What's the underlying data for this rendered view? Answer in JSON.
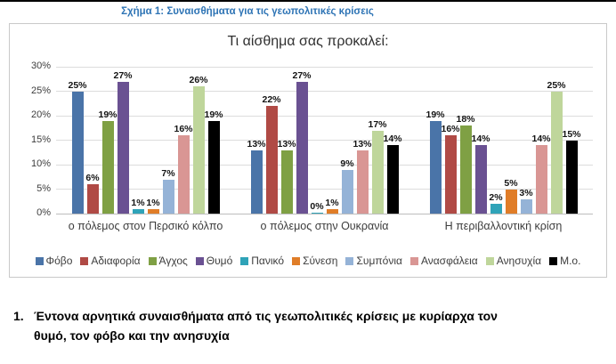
{
  "header": {
    "figure_title": "Σχήμα 1: Συναισθήματα για τις γεωπολιτικές κρίσεις"
  },
  "caption": {
    "number": "1.",
    "text": "Έντονα αρνητικά συναισθήματα από τις γεωπολιτικές κρίσεις με κυρίαρχα τον θυμό, τον φόβο και την ανησυχία"
  },
  "colors": {
    "figure_title_blue": "#2E74B5",
    "gridline": "#dcdcdc",
    "axis_line": "#bdbdbd",
    "box_border": "#c9c9c9"
  },
  "chart_data": {
    "type": "bar",
    "title": "Τι αίσθημα σας προκαλεί:",
    "categories": [
      "ο πόλεμος στον Περσικό κόλπο",
      "ο πόλεμος στην Ουκρανία",
      "Η περιβαλλοντική κρίση"
    ],
    "series": [
      {
        "name": "Φόβο",
        "color": "#4A74A8",
        "values": [
          25,
          13,
          19
        ]
      },
      {
        "name": "Αδιαφορία",
        "color": "#B04A45",
        "values": [
          6,
          22,
          16
        ]
      },
      {
        "name": "Άγχος",
        "color": "#7FA044",
        "values": [
          19,
          13,
          18
        ]
      },
      {
        "name": "Θυμό",
        "color": "#6A5192",
        "values": [
          27,
          27,
          14
        ]
      },
      {
        "name": "Πανικό",
        "color": "#2FA3B8",
        "values": [
          1,
          0,
          2
        ]
      },
      {
        "name": "Σύνεση",
        "color": "#E07D28",
        "values": [
          1,
          1,
          5
        ]
      },
      {
        "name": "Συμπόνια",
        "color": "#95B3D7",
        "values": [
          7,
          9,
          3
        ]
      },
      {
        "name": "Ανασφάλεια",
        "color": "#D99694",
        "values": [
          16,
          13,
          14
        ]
      },
      {
        "name": "Ανησυχία",
        "color": "#BFD69B",
        "values": [
          26,
          17,
          25
        ]
      },
      {
        "name": "Μ.ο.",
        "color": "#000000",
        "values": [
          19,
          14,
          15
        ]
      }
    ],
    "ylim": [
      0,
      30
    ],
    "yticks": [
      0,
      5,
      10,
      15,
      20,
      25,
      30
    ],
    "ytick_suffix": "%",
    "value_suffix": "%",
    "grid": true,
    "legend_position": "bottom"
  }
}
